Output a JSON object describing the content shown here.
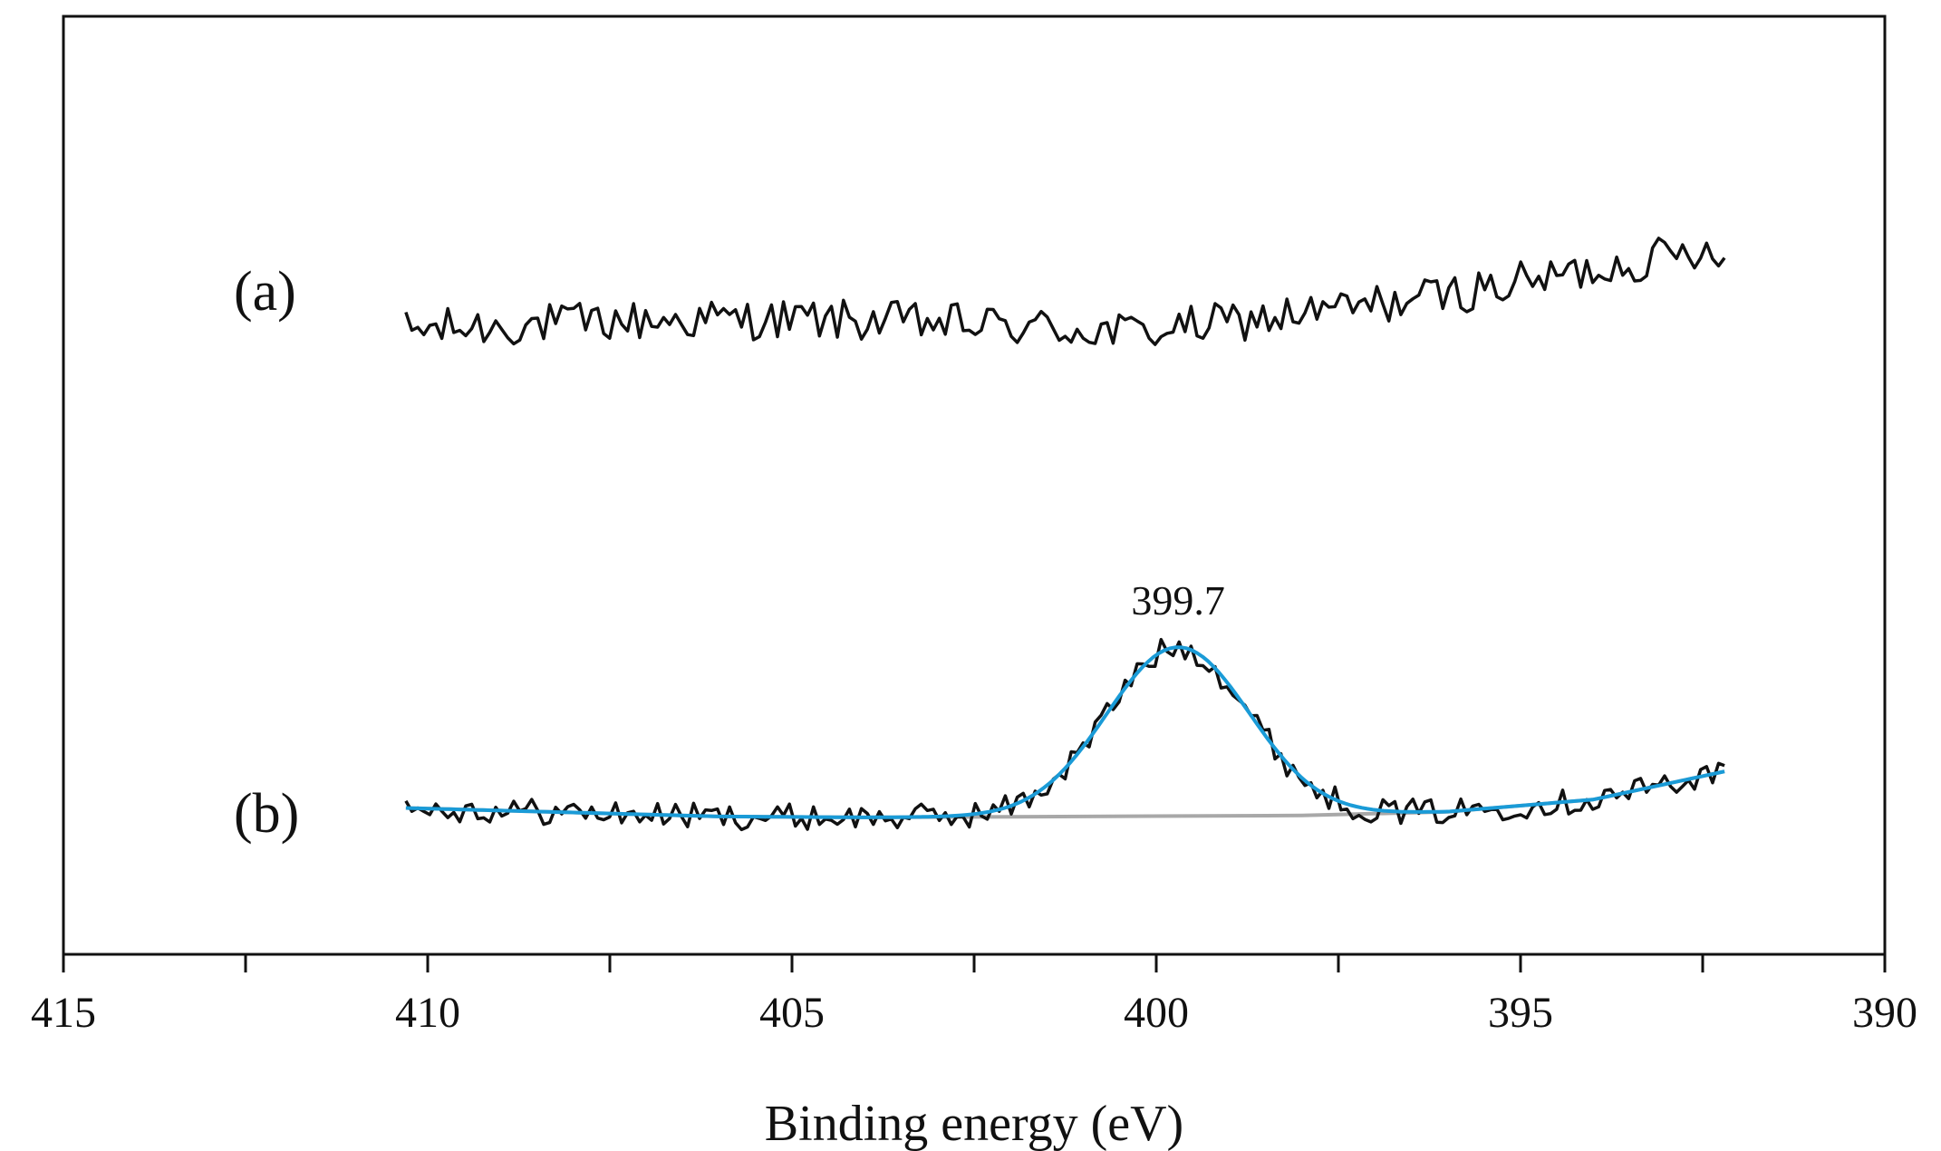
{
  "chart_data": {
    "type": "line",
    "title": "",
    "xlabel": "Binding energy (eV)",
    "ylabel": "",
    "xlim": [
      415,
      390
    ],
    "x_ticks": [
      "415",
      "410",
      "405",
      "400",
      "395",
      "390"
    ],
    "x_tick_values": [
      415,
      410,
      405,
      400,
      395,
      390
    ],
    "x_minor_ticks": [
      412.5,
      407.5,
      402.5,
      397.5,
      392.5
    ],
    "ylim": [
      0,
      100
    ],
    "grid": false,
    "series_labels": [
      "(a)",
      "(b)"
    ],
    "peak_annotation": {
      "text": "399.7",
      "x": 399.7
    },
    "colors": {
      "spectrum": "#111111",
      "fit": "#1a9bd7",
      "background": "#a8a8a8",
      "axis": "#111111"
    },
    "series": [
      {
        "name": "(a) raw spectrum",
        "kind": "raw",
        "x_range": [
          410.3,
          392.2
        ],
        "y_baseline": [
          66.5,
          77.5
        ],
        "noise": 2.2
      },
      {
        "name": "(b) raw spectrum",
        "kind": "raw",
        "x_range": [
          410.3,
          392.2
        ],
        "y_baseline": [
          15.5,
          19.5
        ],
        "noise": 1.4
      },
      {
        "name": "(b) fitted N 1s peak",
        "kind": "fit",
        "center": 399.7,
        "sigma": 0.98,
        "amplitude": 18.0,
        "x_range": [
          410.3,
          392.2
        ]
      },
      {
        "name": "(b) background",
        "kind": "background",
        "points": [
          [
            410.3,
            15.6
          ],
          [
            406.0,
            14.7
          ],
          [
            404.0,
            14.6
          ],
          [
            398.0,
            14.8
          ],
          [
            396.0,
            15.2
          ],
          [
            394.0,
            16.5
          ],
          [
            392.2,
            19.5
          ]
        ]
      }
    ]
  }
}
